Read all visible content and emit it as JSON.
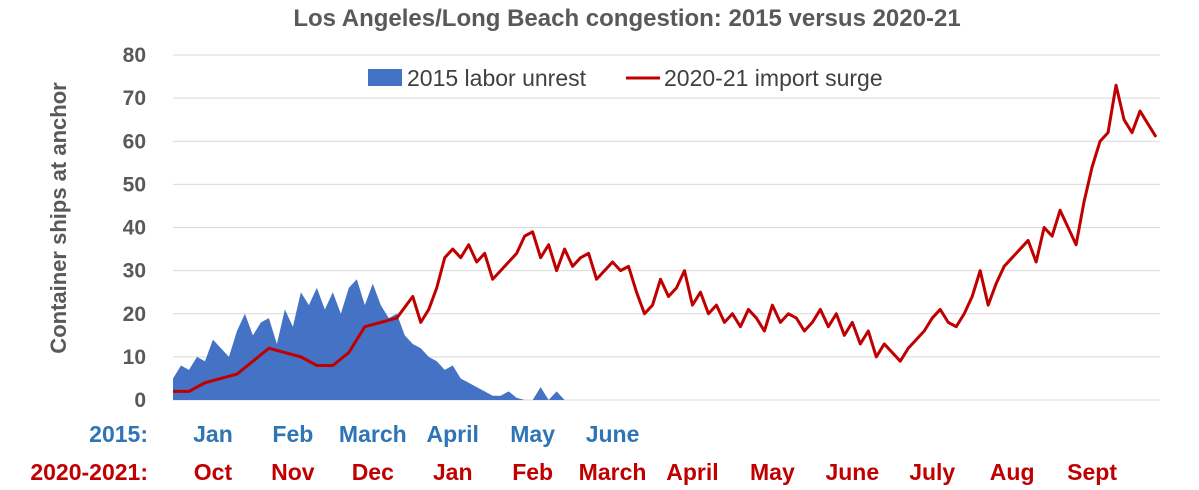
{
  "chart_data": {
    "type": "area",
    "title": "Los Angeles/Long Beach congestion: 2015 versus 2020-21",
    "ylabel": "Container ships at anchor",
    "ylim": [
      0,
      80
    ],
    "yticks": [
      "0",
      "10",
      "20",
      "30",
      "40",
      "50",
      "60",
      "70",
      "80"
    ],
    "grid": true,
    "legend_position": "top-center",
    "colors": {
      "area_2015": "#4472C4",
      "line_2020": "#C00000"
    },
    "x_rows": [
      {
        "label": "2015:",
        "color": "#2E75B6",
        "months": [
          {
            "name": "Jan",
            "x": 0.5
          },
          {
            "name": "Feb",
            "x": 1.5
          },
          {
            "name": "March",
            "x": 2.5
          },
          {
            "name": "April",
            "x": 3.5
          },
          {
            "name": "May",
            "x": 4.5
          },
          {
            "name": "June",
            "x": 5.5
          }
        ]
      },
      {
        "label": "2020-2021:",
        "color": "#C00000",
        "months": [
          {
            "name": "Oct",
            "x": 0.5
          },
          {
            "name": "Nov",
            "x": 1.5
          },
          {
            "name": "Dec",
            "x": 2.5
          },
          {
            "name": "Jan",
            "x": 3.5
          },
          {
            "name": "Feb",
            "x": 4.5
          },
          {
            "name": "March",
            "x": 5.5
          },
          {
            "name": "April",
            "x": 6.5
          },
          {
            "name": "May",
            "x": 7.5
          },
          {
            "name": "June",
            "x": 8.5
          },
          {
            "name": "July",
            "x": 9.5
          },
          {
            "name": "Aug",
            "x": 10.5
          },
          {
            "name": "Sept",
            "x": 11.5
          }
        ]
      }
    ],
    "x_range": [
      0,
      12.35
    ],
    "series": [
      {
        "name": "2015 labor unrest",
        "type": "area",
        "x": [
          0.0,
          0.1,
          0.2,
          0.3,
          0.4,
          0.5,
          0.6,
          0.7,
          0.8,
          0.9,
          1.0,
          1.1,
          1.2,
          1.3,
          1.4,
          1.5,
          1.6,
          1.7,
          1.8,
          1.9,
          2.0,
          2.1,
          2.2,
          2.3,
          2.4,
          2.5,
          2.6,
          2.7,
          2.8,
          2.9,
          3.0,
          3.1,
          3.2,
          3.3,
          3.4,
          3.5,
          3.6,
          3.7,
          3.8,
          3.9,
          4.0,
          4.1,
          4.2,
          4.3,
          4.4,
          4.5,
          4.6,
          4.7,
          4.8,
          4.9,
          5.0
        ],
        "values": [
          5,
          8,
          7,
          10,
          9,
          14,
          12,
          10,
          16,
          20,
          15,
          18,
          19,
          13,
          21,
          17,
          25,
          22,
          26,
          21,
          25,
          20,
          26,
          28,
          22,
          27,
          22,
          19,
          20,
          15,
          13,
          12,
          10,
          9,
          7,
          8,
          5,
          4,
          3,
          2,
          1,
          1,
          2,
          0.5,
          0,
          0,
          3,
          0,
          2,
          0,
          0
        ]
      },
      {
        "name": "2020-21 import surge",
        "type": "line",
        "x": [
          0.0,
          0.2,
          0.4,
          0.6,
          0.8,
          1.0,
          1.2,
          1.4,
          1.6,
          1.8,
          2.0,
          2.2,
          2.4,
          2.6,
          2.8,
          3.0,
          3.1,
          3.2,
          3.3,
          3.4,
          3.5,
          3.6,
          3.7,
          3.8,
          3.9,
          4.0,
          4.1,
          4.2,
          4.3,
          4.4,
          4.5,
          4.6,
          4.7,
          4.8,
          4.9,
          5.0,
          5.1,
          5.2,
          5.3,
          5.4,
          5.5,
          5.6,
          5.7,
          5.8,
          5.9,
          6.0,
          6.1,
          6.2,
          6.3,
          6.4,
          6.5,
          6.6,
          6.7,
          6.8,
          6.9,
          7.0,
          7.1,
          7.2,
          7.3,
          7.4,
          7.5,
          7.6,
          7.7,
          7.8,
          7.9,
          8.0,
          8.1,
          8.2,
          8.3,
          8.4,
          8.5,
          8.6,
          8.7,
          8.8,
          8.9,
          9.0,
          9.1,
          9.2,
          9.3,
          9.4,
          9.5,
          9.6,
          9.7,
          9.8,
          9.9,
          10.0,
          10.1,
          10.2,
          10.3,
          10.4,
          10.5,
          10.6,
          10.7,
          10.8,
          10.9,
          11.0,
          11.1,
          11.2,
          11.3,
          11.4,
          11.5,
          11.6,
          11.7,
          11.8,
          11.9,
          12.0,
          12.1,
          12.2,
          12.3
        ],
        "values": [
          2,
          2,
          4,
          5,
          6,
          9,
          12,
          11,
          10,
          8,
          8,
          11,
          17,
          18,
          19,
          24,
          18,
          21,
          26,
          33,
          35,
          33,
          36,
          32,
          34,
          28,
          30,
          32,
          34,
          38,
          39,
          33,
          36,
          30,
          35,
          31,
          33,
          34,
          28,
          30,
          32,
          30,
          31,
          25,
          20,
          22,
          28,
          24,
          26,
          30,
          22,
          25,
          20,
          22,
          18,
          20,
          17,
          21,
          19,
          16,
          22,
          18,
          20,
          19,
          16,
          18,
          21,
          17,
          20,
          15,
          18,
          13,
          16,
          10,
          13,
          11,
          9,
          12,
          14,
          16,
          19,
          21,
          18,
          17,
          20,
          24,
          30,
          22,
          27,
          31,
          33,
          35,
          37,
          32,
          40,
          38,
          44,
          40,
          36,
          46,
          54,
          60,
          62,
          73,
          65,
          62,
          67,
          64,
          61
        ]
      }
    ]
  }
}
